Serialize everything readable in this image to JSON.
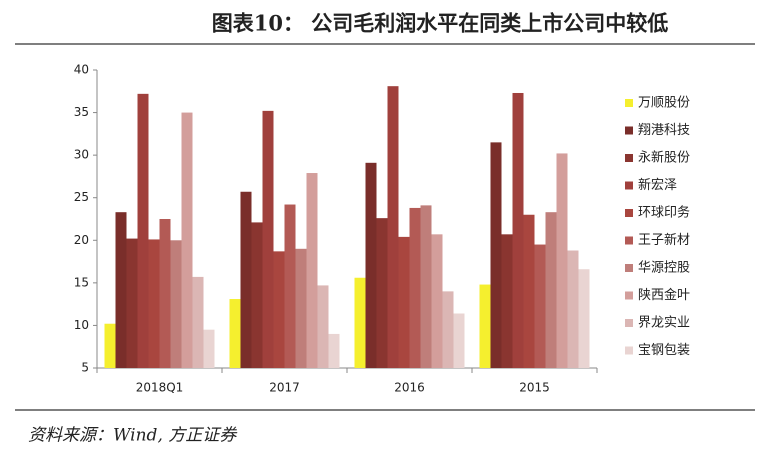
{
  "chart_data": {
    "type": "bar",
    "title": "图表10： 公司毛利润水平在同类上市公司中较低",
    "source": "资料来源：Wind, 方正证券",
    "categories": [
      "2018Q1",
      "2017",
      "2016",
      "2015"
    ],
    "ylim": [
      5,
      40
    ],
    "yticks": [
      5,
      10,
      15,
      20,
      25,
      30,
      35,
      40
    ],
    "legend": "right",
    "series": [
      {
        "name": "万顺股份",
        "color": "#f5ef2e",
        "values": [
          10.2,
          13.1,
          15.6,
          14.8
        ]
      },
      {
        "name": "翔港科技",
        "color": "#7a2e2a",
        "values": [
          23.3,
          25.7,
          29.1,
          31.5
        ]
      },
      {
        "name": "永新股份",
        "color": "#8a3530",
        "values": [
          20.2,
          22.1,
          22.6,
          20.7
        ]
      },
      {
        "name": "新宏泽",
        "color": "#a0403c",
        "values": [
          37.2,
          35.2,
          38.1,
          37.3
        ]
      },
      {
        "name": "环球印务",
        "color": "#a9463f",
        "values": [
          20.1,
          18.7,
          20.4,
          23.0
        ]
      },
      {
        "name": "王子新材",
        "color": "#b35a55",
        "values": [
          22.5,
          24.2,
          23.8,
          19.5
        ]
      },
      {
        "name": "华源控股",
        "color": "#bf7e7a",
        "values": [
          20.0,
          19.0,
          24.1,
          23.3
        ]
      },
      {
        "name": "陕西金叶",
        "color": "#d39e9b",
        "values": [
          35.0,
          27.9,
          20.7,
          30.2
        ]
      },
      {
        "name": "界龙实业",
        "color": "#dbb6b4",
        "values": [
          15.7,
          14.7,
          14.0,
          18.8
        ]
      },
      {
        "name": "宝钢包装",
        "color": "#e9d4d2",
        "values": [
          9.5,
          9.0,
          11.4,
          16.6
        ]
      }
    ]
  }
}
